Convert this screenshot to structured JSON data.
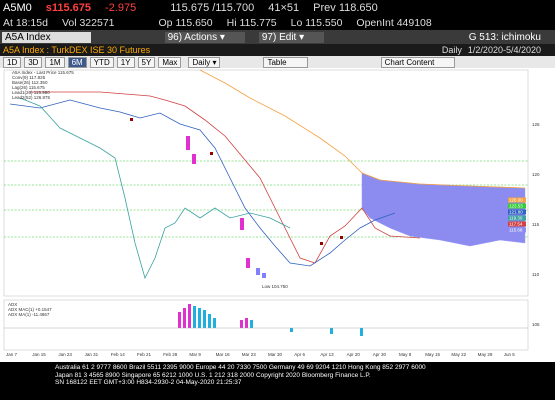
{
  "header": {
    "ticker": "A5M0",
    "last": "s115.675",
    "change": "-2.975",
    "bid_ask": "115.675 /115.700",
    "size": "41×51",
    "prev": "Prev 118.650",
    "time": "At 18:15d",
    "vol": "Vol 322571",
    "open": "Op 115.650",
    "high": "Hi 115.775",
    "low": "Lo 115.550",
    "open_int": "OpenInt 449108"
  },
  "command_bar": {
    "security": "A5A Index",
    "actions": "96) Actions ▾",
    "edit": "97) Edit ▾",
    "function": "G 513: ichimoku"
  },
  "title_bar": {
    "name": "A5A Index : TurkDEX ISE 30 Futures",
    "period": "Daily",
    "range": "1/2/2020-5/4/2020"
  },
  "toolbar": {
    "buttons": [
      "1D",
      "3D",
      "1M",
      "6M",
      "YTD",
      "1Y",
      "5Y",
      "Max"
    ],
    "frequency": "Daily ▾",
    "table": "Table",
    "chart_content": "Chart Content"
  },
  "chart": {
    "legend": [
      "A5A Index - Last Price 115.675",
      "Conv(9) 117.825",
      "Base(26) 112.350",
      "Lag(26) 115.675",
      "Lead1(26) 115.980",
      "Lead2(52) 126.875"
    ],
    "axis_labels": [
      "125",
      "120",
      "115",
      "110",
      "105"
    ],
    "price_labels": [
      "126.00",
      "123.53",
      "121.80",
      "119.30",
      "117.54",
      "115.68"
    ],
    "low_label": "Low 104.750",
    "macd_legend": [
      "ADX",
      "ADX MAC(1) +0.1547",
      "ADX MA(1) -11.4867"
    ],
    "x_labels": [
      "Jan 7",
      "Jan 15",
      "Jan 23",
      "Jan 31",
      "Feb 14",
      "Feb 21",
      "Feb 28",
      "Mar 9",
      "Mar 16",
      "Mar 23",
      "Mar 30",
      "Apr 6",
      "Apr 13",
      "Apr 20",
      "Apr 30",
      "May 8",
      "May 15",
      "May 22",
      "May 29",
      "Jun 5"
    ]
  },
  "footer": {
    "lines": [
      "Australia 61 2 9777 8600 Brazil 5511 2395 9000 Europe 44 20 7330 7500 Germany 49 69 9204 1210 Hong Kong 852 2977 6000",
      "Japan 81 3 4565 8900 Singapore 65 6212 1000 U.S. 1 212 318 2000 Copyright 2020 Bloomberg Finance L.P.",
      "SN 168122 EET GMT+3:00 H834-2930-2 04-May-2020 21:25:37"
    ]
  }
}
